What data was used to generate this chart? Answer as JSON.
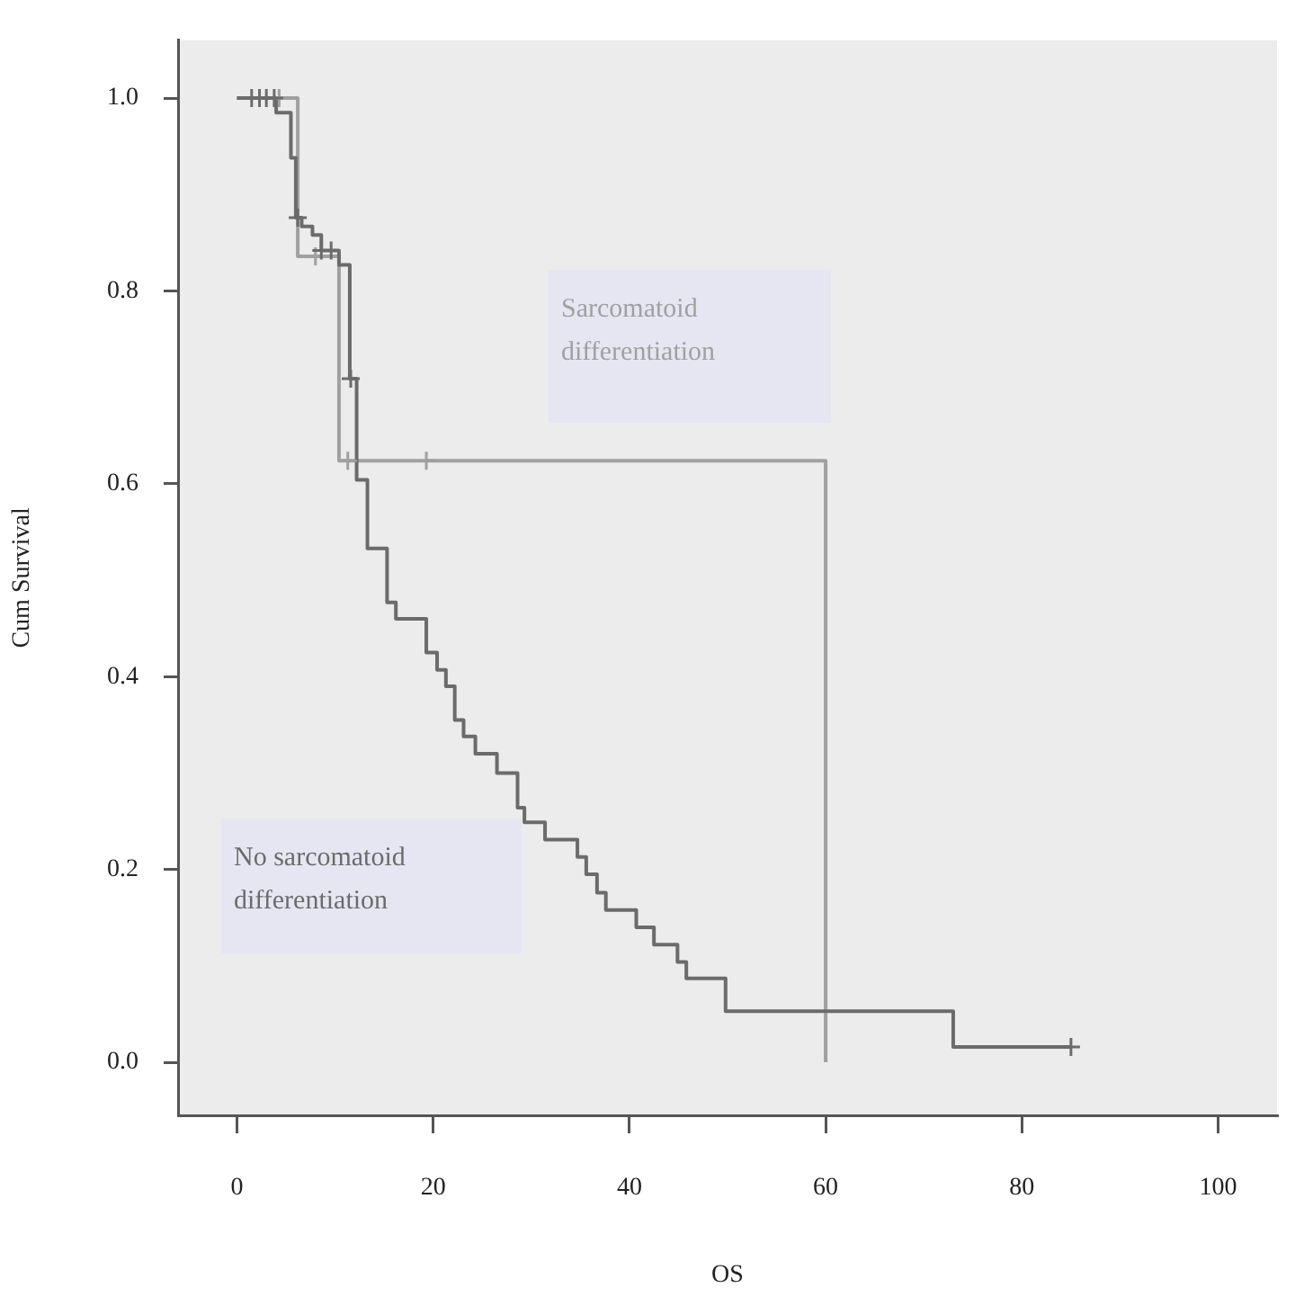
{
  "chart_data": {
    "type": "step",
    "xlabel": "OS",
    "ylabel": "Cum Survival",
    "xlim": [
      -6,
      106
    ],
    "ylim": [
      -0.055,
      1.06
    ],
    "xticks": [
      0,
      20,
      40,
      60,
      80,
      100
    ],
    "yticks": [
      {
        "value": 0,
        "label": "0.0"
      },
      {
        "value": 0.2,
        "label": "0.2"
      },
      {
        "value": 0.4,
        "label": "0.4"
      },
      {
        "value": 0.6,
        "label": "0.6"
      },
      {
        "value": 0.8,
        "label": "0.8"
      },
      {
        "value": 1,
        "label": "1.0"
      }
    ],
    "grid": false,
    "legend": false,
    "series": [
      {
        "name": "No sarcomatoid differentiation",
        "color": "#6b6b6b",
        "marker": "none",
        "x": [
          0,
          4.0,
          5.5,
          6.0,
          6.6,
          7.7,
          8.6,
          10.4,
          11.5,
          12.2,
          13.3,
          15.3,
          16.2,
          19.3,
          20.4,
          21.3,
          22.2,
          23.1,
          24.3,
          26.5,
          28.6,
          29.3,
          31.4,
          34.7,
          35.6,
          36.7,
          37.6,
          40.7,
          42.5,
          44.9,
          45.8,
          49.8,
          73.0,
          85
        ],
        "values": [
          1,
          0.985,
          0.938,
          0.876,
          0.867,
          0.858,
          0.842,
          0.827,
          0.709,
          0.604,
          0.533,
          0.477,
          0.46,
          0.425,
          0.407,
          0.39,
          0.355,
          0.338,
          0.32,
          0.3,
          0.264,
          0.249,
          0.231,
          0.213,
          0.195,
          0.176,
          0.158,
          0.14,
          0.122,
          0.104,
          0.087,
          0.053,
          0.016,
          0.016
        ]
      },
      {
        "name": "Sarcomatoid differentiation",
        "color": "#a0a0a0",
        "marker": "none",
        "x": [
          0,
          6.2,
          10.4,
          60
        ],
        "values": [
          1,
          0.836,
          0.624,
          0
        ]
      },
      {
        "type": "scatter",
        "color": "#6b6b6b",
        "marker": "cross",
        "x": [
          1.5,
          2.3,
          3.0,
          3.8,
          6.2,
          8.6,
          9.6,
          11.6,
          85
        ],
        "values": [
          1,
          1,
          1,
          1,
          0.876,
          0.842,
          0.842,
          0.709,
          0.016
        ]
      },
      {
        "type": "scatter",
        "color": "#a0a0a0",
        "marker": "cross",
        "x": [
          4.3,
          8.0,
          11.3,
          19.3
        ],
        "values": [
          1,
          0.836,
          0.624,
          0.624
        ]
      }
    ]
  }
}
